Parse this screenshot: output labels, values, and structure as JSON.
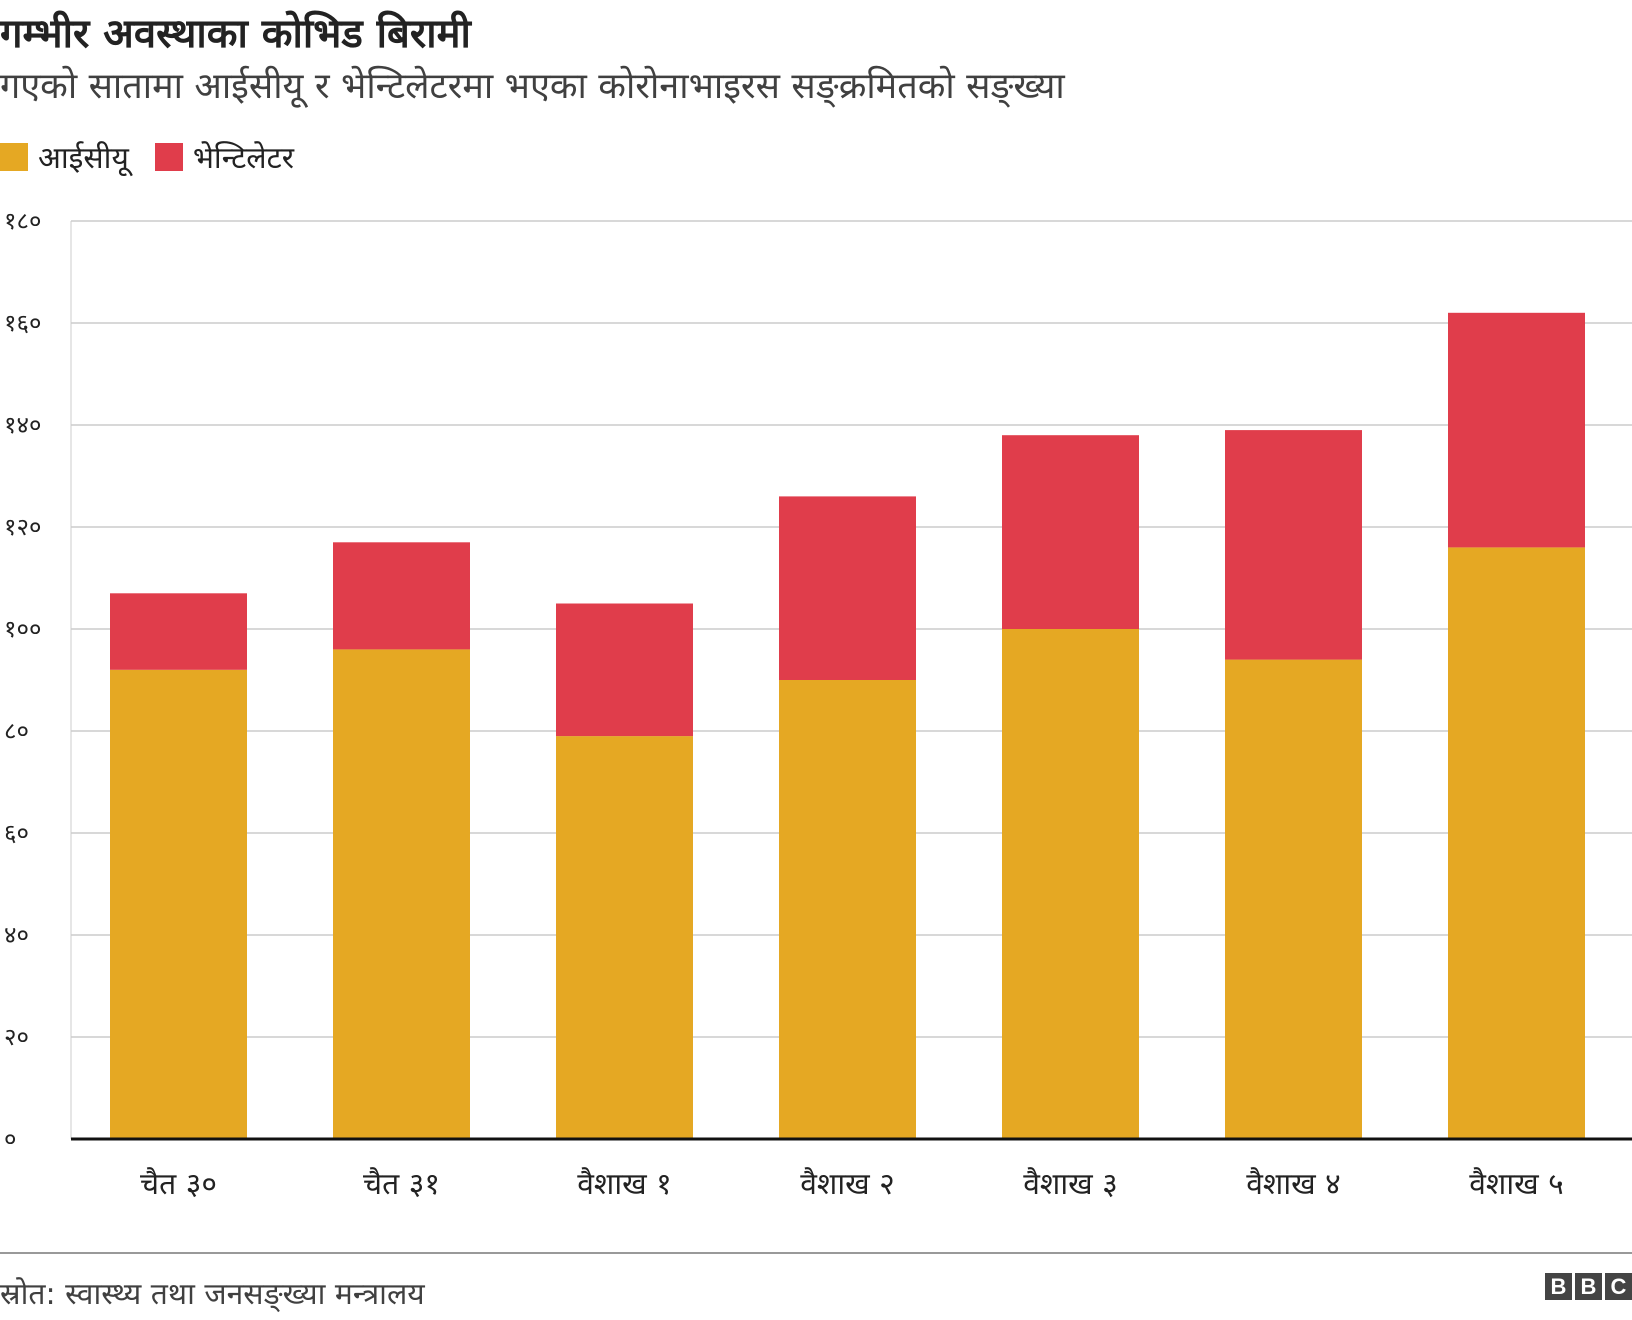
{
  "header": {
    "title": "गम्भीर अवस्थाका कोभिड बिरामी",
    "subtitle": "गएको सातामा आईसीयू र भेन्टिलेटरमा भएका कोरोनाभाइरस सङ्क्रमितको सङ्ख्या"
  },
  "footer": {
    "source": "स्रोत: स्वास्थ्य तथा जनसङ्ख्या मन्त्रालय",
    "logo": [
      "B",
      "B",
      "C"
    ]
  },
  "chart_data": {
    "type": "bar",
    "stacked": true,
    "title": "गम्भीर अवस्थाका कोभिड बिरामी",
    "subtitle": "गएको सातामा आईसीयू र भेन्टिलेटरमा भएका कोरोनाभाइरस सङ्क्रमितको सङ्ख्या",
    "categories": [
      "चैत ३०",
      "चैत ३१",
      "वैशाख १",
      "वैशाख २",
      "वैशाख ३",
      "वैशाख ४",
      "वैशाख ५"
    ],
    "series": [
      {
        "name": "आईसीयू",
        "color": "#e5a823",
        "values": [
          92,
          96,
          79,
          90,
          100,
          94,
          116
        ]
      },
      {
        "name": "भेन्टिलेटर",
        "color": "#e03d4b",
        "values": [
          15,
          21,
          26,
          36,
          38,
          45,
          46
        ]
      }
    ],
    "ylim": [
      0,
      180
    ],
    "yticks": [
      0,
      20,
      40,
      60,
      80,
      100,
      120,
      140,
      160,
      180
    ],
    "ytick_labels": [
      "०",
      "२०",
      "४०",
      "६०",
      "८०",
      "१००",
      "१२०",
      "१४०",
      "१६०",
      "१८०"
    ],
    "grid": true,
    "legend": "top-left",
    "xlabel": "",
    "ylabel": ""
  }
}
